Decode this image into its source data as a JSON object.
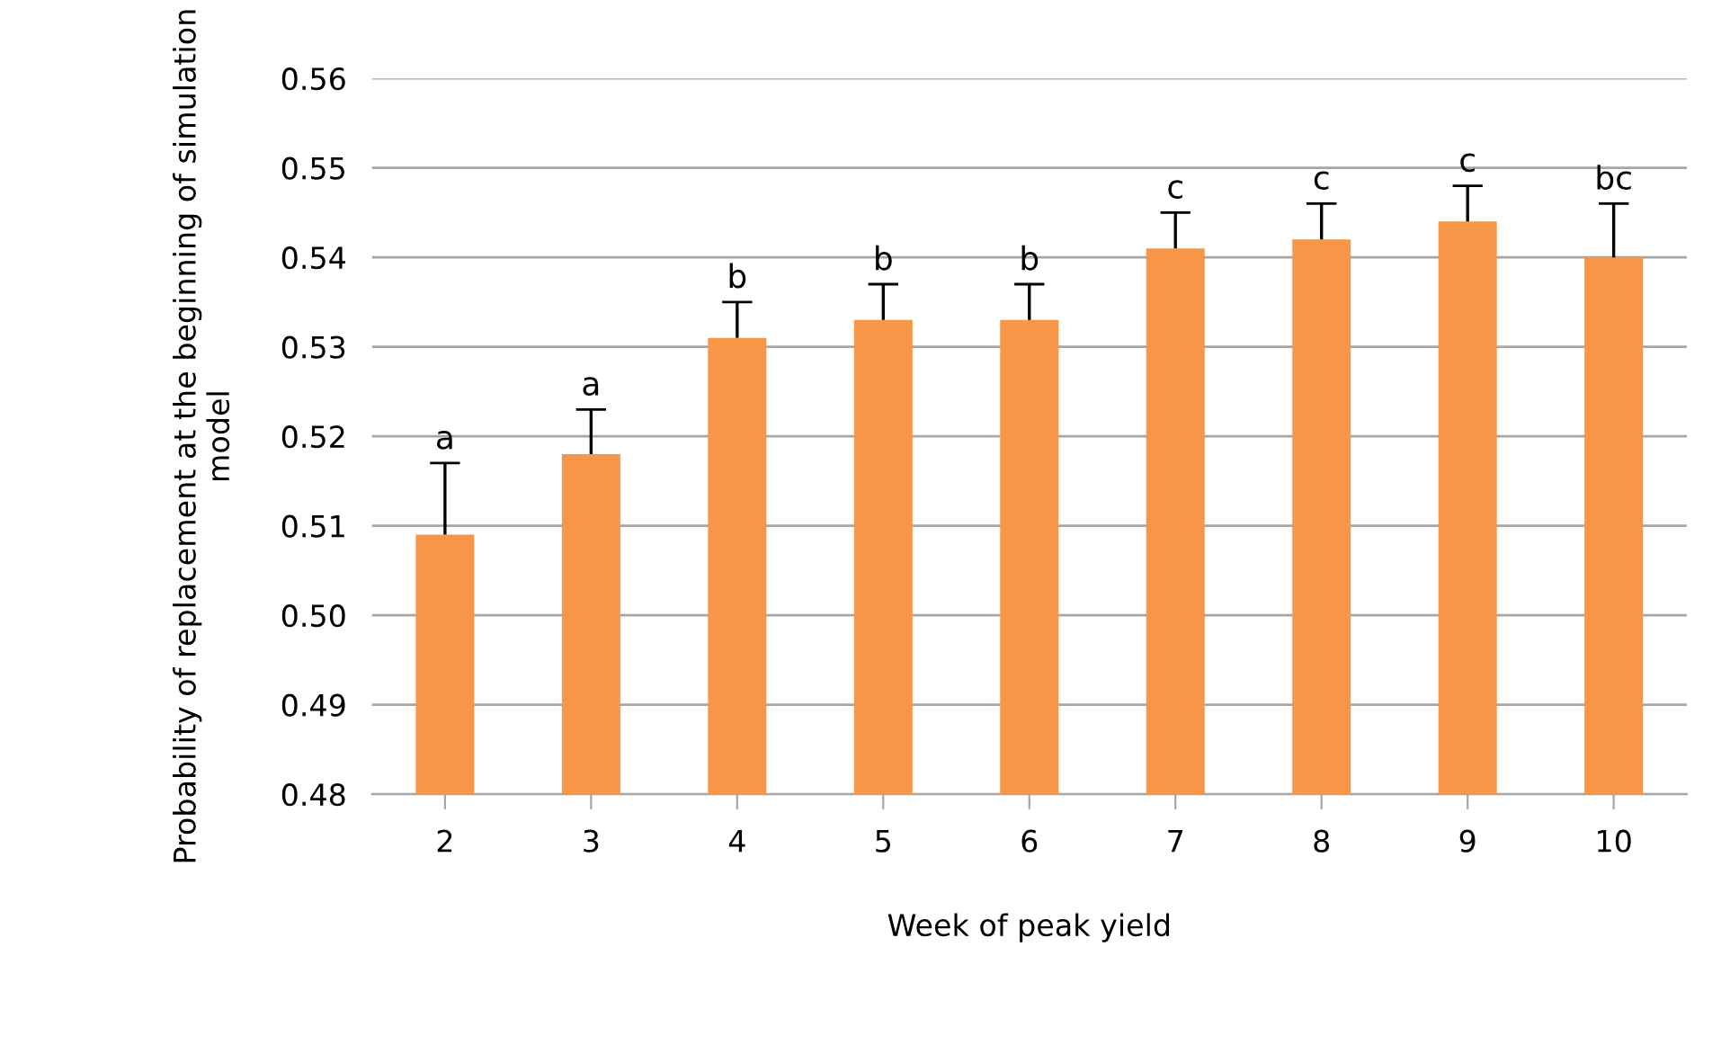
{
  "chart_data": {
    "type": "bar",
    "xlabel": "Week of peak yield",
    "ylabel": "Probability of replacement at the beginning of simulation model",
    "categories": [
      "2",
      "3",
      "4",
      "5",
      "6",
      "7",
      "8",
      "9",
      "10"
    ],
    "values": [
      0.509,
      0.518,
      0.531,
      0.533,
      0.533,
      0.541,
      0.542,
      0.544,
      0.54
    ],
    "errors": [
      [
        0.509,
        0.517
      ],
      [
        0.518,
        0.523
      ],
      [
        0.531,
        0.535
      ],
      [
        0.533,
        0.537
      ],
      [
        0.533,
        0.537
      ],
      [
        0.541,
        0.545
      ],
      [
        0.542,
        0.546
      ],
      [
        0.544,
        0.548
      ],
      [
        0.54,
        0.546
      ]
    ],
    "color": "#f79646",
    "ylim": [
      0.48,
      0.56
    ],
    "yticks": [
      {
        "value": 0.48,
        "label": "0.48"
      },
      {
        "value": 0.49,
        "label": "0.49"
      },
      {
        "value": 0.5,
        "label": "0.50"
      },
      {
        "value": 0.51,
        "label": "0.51"
      },
      {
        "value": 0.52,
        "label": "0.52"
      },
      {
        "value": 0.53,
        "label": "0.53"
      },
      {
        "value": 0.54,
        "label": "0.54"
      },
      {
        "value": 0.55,
        "label": "0.55"
      },
      {
        "value": 0.56,
        "label": "0.56"
      }
    ],
    "grid": "y",
    "annotations": [
      {
        "text": "a",
        "x": "2",
        "y": 0.517
      },
      {
        "text": "a",
        "x": "3",
        "y": 0.523
      },
      {
        "text": "b",
        "x": "4",
        "y": 0.535
      },
      {
        "text": "b",
        "x": "5",
        "y": 0.537
      },
      {
        "text": "b",
        "x": "6",
        "y": 0.537
      },
      {
        "text": "c",
        "x": "7",
        "y": 0.545
      },
      {
        "text": "c",
        "x": "8",
        "y": 0.546
      },
      {
        "text": "c",
        "x": "9",
        "y": 0.548
      },
      {
        "text": "bc",
        "x": "10",
        "y": 0.546
      }
    ]
  }
}
